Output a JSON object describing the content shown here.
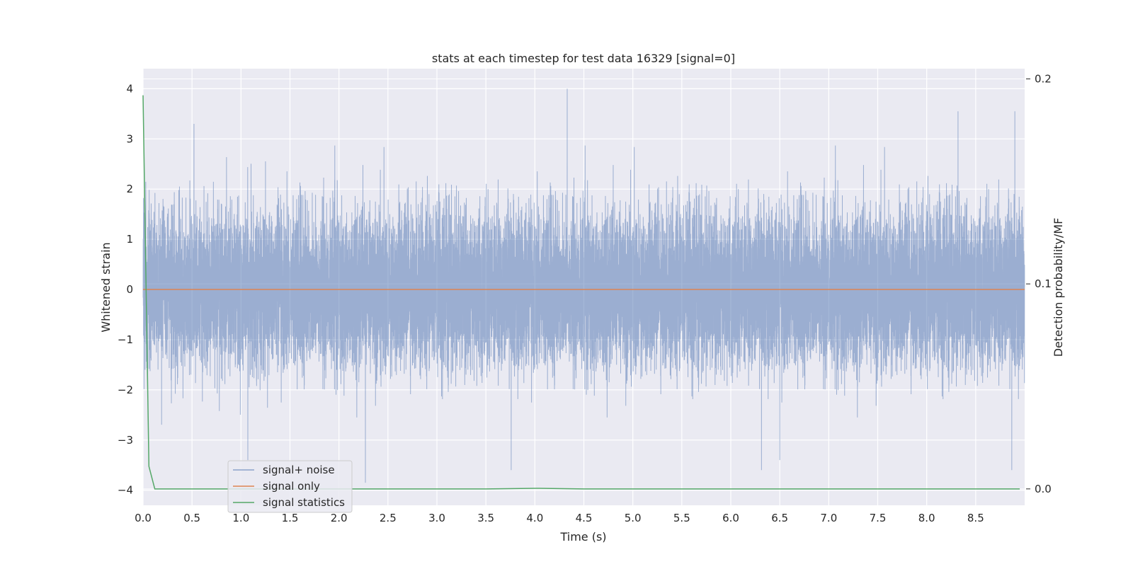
{
  "chart_data": {
    "type": "line",
    "title": "stats at each timestep for test data 16329 [signal=0]",
    "xlabel": "Time (s)",
    "ylabel": "Whitened strain",
    "y2label": "Detection probability/MF",
    "xlim": [
      0.0,
      9.0
    ],
    "ylim": [
      -4.3,
      4.4
    ],
    "y2lim": [
      -0.008,
      0.205
    ],
    "x_ticks": [
      "0.0",
      "0.5",
      "1.0",
      "1.5",
      "2.0",
      "2.5",
      "3.0",
      "3.5",
      "4.0",
      "4.5",
      "5.0",
      "5.5",
      "6.0",
      "6.5",
      "7.0",
      "7.5",
      "8.0",
      "8.5"
    ],
    "x_tick_values": [
      0,
      0.5,
      1,
      1.5,
      2,
      2.5,
      3,
      3.5,
      4,
      4.5,
      5,
      5.5,
      6,
      6.5,
      7,
      7.5,
      8,
      8.5
    ],
    "y_ticks": [
      "−4",
      "−3",
      "−2",
      "−1",
      "0",
      "1",
      "2",
      "3",
      "4"
    ],
    "y_tick_values": [
      -4,
      -3,
      -2,
      -1,
      0,
      1,
      2,
      3,
      4
    ],
    "y2_ticks": [
      "0.0",
      "0.1",
      "0.2"
    ],
    "y2_tick_values": [
      0.0,
      0.1,
      0.2
    ],
    "grid": true,
    "legend_position": "lower-left",
    "series": [
      {
        "name": "signal+ noise",
        "axis": "left",
        "color": "#4c72b0",
        "style": "noise",
        "sample_rate_hz": 2048,
        "x_range": [
          0.0,
          9.0
        ],
        "std": 0.75,
        "extremes": [
          [
            0.52,
            3.3
          ],
          [
            1.07,
            -3.4
          ],
          [
            2.27,
            -3.85
          ],
          [
            4.33,
            4.0
          ],
          [
            6.5,
            -3.4
          ],
          [
            8.32,
            3.55
          ],
          [
            8.9,
            3.55
          ]
        ]
      },
      {
        "name": "signal only",
        "axis": "left",
        "color": "#dd8452",
        "x": [
          0.0,
          9.0
        ],
        "y": [
          0.0,
          0.0
        ]
      },
      {
        "name": "signal statistics",
        "axis": "right",
        "color": "#55a868",
        "x": [
          0.0,
          0.06,
          0.12,
          0.5,
          1.0,
          2.0,
          3.0,
          3.5,
          4.0,
          4.5,
          5.0,
          6.0,
          7.0,
          8.0,
          8.95
        ],
        "y": [
          0.192,
          0.011,
          0.0,
          0.0,
          0.0,
          0.0,
          0.0,
          0.0,
          0.0003,
          0.0,
          0.0,
          0.0,
          0.0,
          0.0,
          0.0
        ]
      }
    ]
  },
  "colors": {
    "plot_background": "#eaeaf2",
    "grid": "#ffffff",
    "text": "#262626"
  }
}
